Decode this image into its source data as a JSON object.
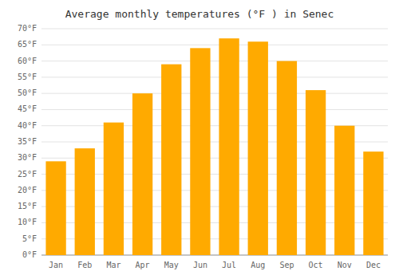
{
  "chart_data": {
    "type": "bar",
    "title": "Average monthly temperatures (°F ) in Senec",
    "categories": [
      "Jan",
      "Feb",
      "Mar",
      "Apr",
      "May",
      "Jun",
      "Jul",
      "Aug",
      "Sep",
      "Oct",
      "Nov",
      "Dec"
    ],
    "values": [
      29,
      33,
      41,
      50,
      59,
      64,
      67,
      66,
      60,
      51,
      40,
      32
    ],
    "color": "#FFAA00",
    "ylim": [
      0,
      70
    ],
    "yticks": [
      {
        "value": 0,
        "label": "0°F"
      },
      {
        "value": 5,
        "label": "5°F"
      },
      {
        "value": 10,
        "label": "10°F"
      },
      {
        "value": 15,
        "label": "15°F"
      },
      {
        "value": 20,
        "label": "20°F"
      },
      {
        "value": 25,
        "label": "25°F"
      },
      {
        "value": 30,
        "label": "30°F"
      },
      {
        "value": 35,
        "label": "35°F"
      },
      {
        "value": 40,
        "label": "40°F"
      },
      {
        "value": 45,
        "label": "45°F"
      },
      {
        "value": 50,
        "label": "50°F"
      },
      {
        "value": 55,
        "label": "55°F"
      },
      {
        "value": 60,
        "label": "60°F"
      },
      {
        "value": 65,
        "label": "65°F"
      },
      {
        "value": 70,
        "label": "70°F"
      }
    ],
    "grid": true
  }
}
